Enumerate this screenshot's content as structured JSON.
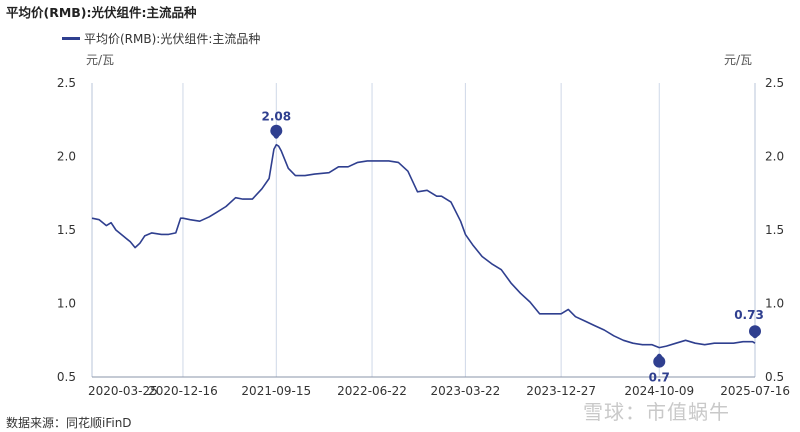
{
  "title": "平均价(RMB):光伏组件:主流品种",
  "legend": {
    "label": "平均价(RMB):光伏组件:主流品种",
    "color": "#2f3f8f"
  },
  "unit_left": "元/瓦",
  "unit_right": "元/瓦",
  "source": "数据来源：同花顺iFinD",
  "watermark": "雪球：市值蜗牛",
  "chart_data": {
    "type": "line",
    "title": "平均价(RMB):光伏组件:主流品种",
    "xlabel": "",
    "ylabel": "元/瓦",
    "y2label": "元/瓦",
    "ylim": [
      0.5,
      2.5
    ],
    "yticks": [
      "0.5",
      "1.0",
      "1.5",
      "2.0",
      "2.5"
    ],
    "xticks": [
      "2020-03-25",
      "2020-12-16",
      "2021-09-15",
      "2022-06-22",
      "2023-03-22",
      "2023-12-27",
      "2024-10-09",
      "2025-07-16"
    ],
    "grid": "vertical",
    "legend_position": "top-left",
    "series": [
      {
        "name": "平均价(RMB):光伏组件:主流品种",
        "color": "#2f3f8f",
        "x": [
          "2020-03-25",
          "2020-04-15",
          "2020-05-06",
          "2020-05-20",
          "2020-06-03",
          "2020-06-24",
          "2020-07-15",
          "2020-07-29",
          "2020-08-12",
          "2020-08-26",
          "2020-09-16",
          "2020-10-14",
          "2020-11-04",
          "2020-11-25",
          "2020-12-09",
          "2020-12-16",
          "2021-01-06",
          "2021-02-03",
          "2021-03-03",
          "2021-03-24",
          "2021-04-21",
          "2021-05-19",
          "2021-06-09",
          "2021-07-07",
          "2021-08-04",
          "2021-08-25",
          "2021-09-08",
          "2021-09-15",
          "2021-09-22",
          "2021-09-29",
          "2021-10-20",
          "2021-11-10",
          "2021-12-08",
          "2022-01-05",
          "2022-02-16",
          "2022-03-16",
          "2022-04-13",
          "2022-05-11",
          "2022-06-08",
          "2022-06-22",
          "2022-07-13",
          "2022-08-10",
          "2022-09-07",
          "2022-10-05",
          "2022-11-02",
          "2022-11-30",
          "2022-12-28",
          "2023-01-11",
          "2023-02-08",
          "2023-03-08",
          "2023-03-22",
          "2023-04-12",
          "2023-05-10",
          "2023-06-07",
          "2023-07-05",
          "2023-08-02",
          "2023-08-30",
          "2023-09-27",
          "2023-10-25",
          "2023-11-22",
          "2023-12-13",
          "2023-12-27",
          "2024-01-17",
          "2024-02-07",
          "2024-03-06",
          "2024-04-03",
          "2024-05-01",
          "2024-05-29",
          "2024-06-26",
          "2024-07-24",
          "2024-08-21",
          "2024-09-18",
          "2024-10-09",
          "2024-10-30",
          "2024-11-27",
          "2024-12-25",
          "2025-01-22",
          "2025-02-19",
          "2025-03-19",
          "2025-04-16",
          "2025-05-14",
          "2025-06-11",
          "2025-07-09",
          "2025-07-16"
        ],
        "values": [
          1.58,
          1.57,
          1.53,
          1.55,
          1.5,
          1.46,
          1.42,
          1.38,
          1.41,
          1.46,
          1.48,
          1.47,
          1.47,
          1.48,
          1.58,
          1.58,
          1.57,
          1.56,
          1.59,
          1.62,
          1.66,
          1.72,
          1.71,
          1.71,
          1.78,
          1.85,
          2.05,
          2.08,
          2.07,
          2.04,
          1.92,
          1.87,
          1.87,
          1.88,
          1.89,
          1.93,
          1.93,
          1.96,
          1.97,
          1.97,
          1.97,
          1.97,
          1.96,
          1.9,
          1.76,
          1.77,
          1.73,
          1.73,
          1.69,
          1.56,
          1.47,
          1.4,
          1.32,
          1.27,
          1.23,
          1.14,
          1.07,
          1.01,
          0.93,
          0.93,
          0.93,
          0.93,
          0.96,
          0.91,
          0.88,
          0.85,
          0.82,
          0.78,
          0.75,
          0.73,
          0.72,
          0.72,
          0.7,
          0.71,
          0.73,
          0.75,
          0.73,
          0.72,
          0.73,
          0.73,
          0.73,
          0.74,
          0.74,
          0.73
        ]
      }
    ],
    "annotations": [
      {
        "label": "2.08",
        "x": "2021-09-15",
        "value": 2.08
      },
      {
        "label": "0.7",
        "x": "2024-10-09",
        "value": 0.7
      },
      {
        "label": "0.73",
        "x": "2025-07-16",
        "value": 0.73
      }
    ]
  }
}
